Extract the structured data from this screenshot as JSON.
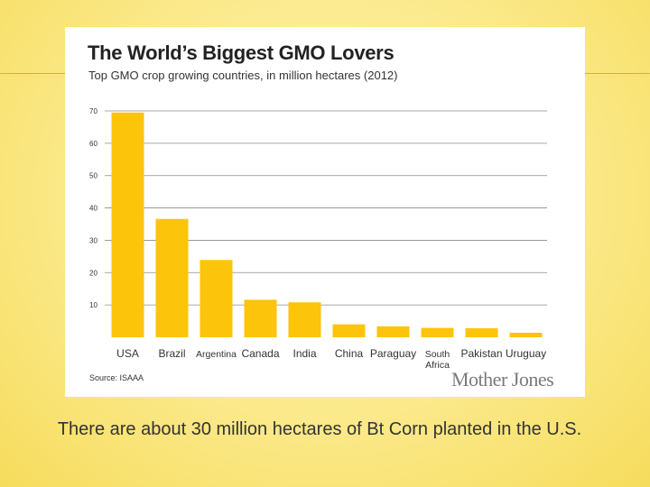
{
  "caption": "There are about 30 million hectares of Bt Corn planted in the U.S.",
  "source": "Source: ISAAA",
  "brand": "Mother Jones",
  "colors": {
    "bar": "#fcc40a",
    "grid": "#8c8c8c",
    "background": "#fbe98a"
  },
  "chart_data": {
    "type": "bar",
    "title": "The World’s Biggest GMO Lovers",
    "subtitle": "Top GMO crop growing countries, in million hectares (2012)",
    "categories": [
      "USA",
      "Brazil",
      "Argentina",
      "Canada",
      "India",
      "China",
      "Paraguay",
      "South Africa",
      "Pakistan",
      "Uruguay"
    ],
    "values": [
      69.5,
      36.6,
      23.9,
      11.6,
      10.8,
      4.0,
      3.4,
      2.9,
      2.8,
      1.4
    ],
    "yticks": [
      10,
      20,
      30,
      40,
      50,
      60,
      70
    ],
    "ylim": [
      0,
      70
    ],
    "grid": true,
    "xlabel": "",
    "ylabel": ""
  }
}
